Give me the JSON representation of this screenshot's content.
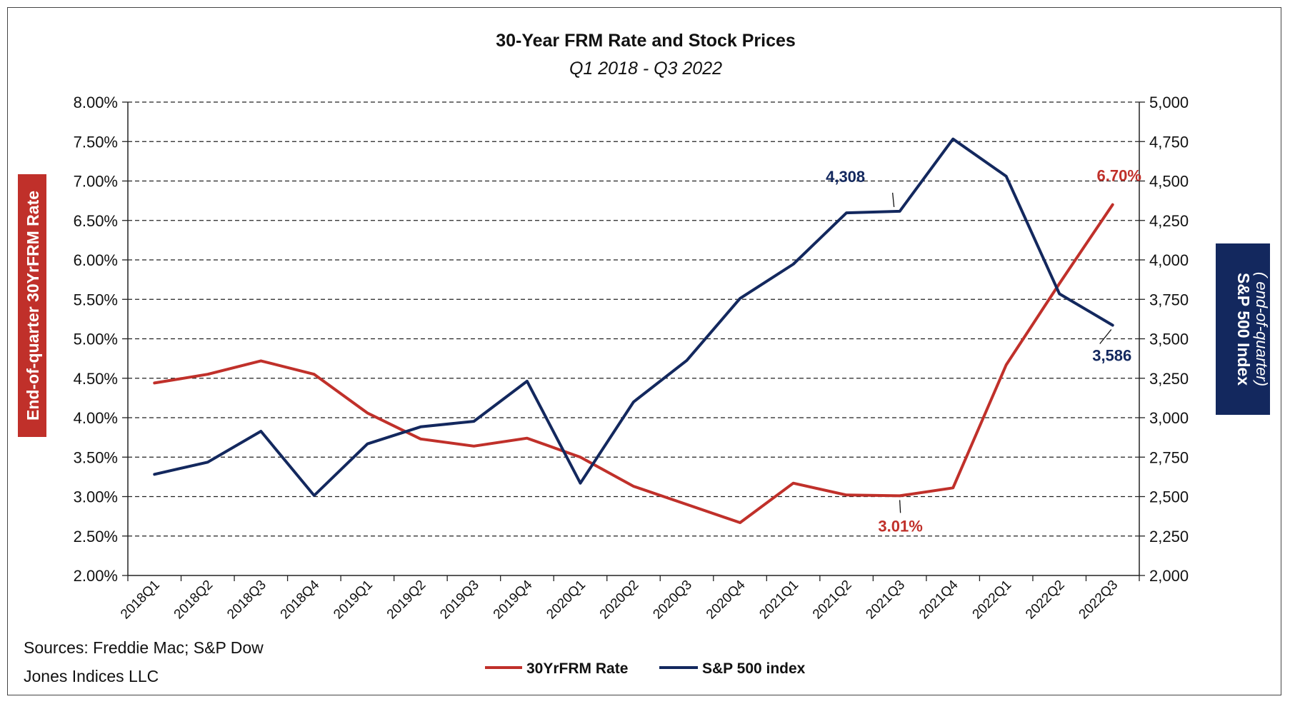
{
  "chart_data": {
    "type": "line",
    "title": "30-Year FRM Rate and Stock Prices",
    "subtitle": "Q1 2018 - Q3 2022",
    "categories": [
      "2018Q1",
      "2018Q2",
      "2018Q3",
      "2018Q4",
      "2019Q1",
      "2019Q2",
      "2019Q3",
      "2019Q4",
      "2020Q1",
      "2020Q2",
      "2020Q3",
      "2020Q4",
      "2021Q1",
      "2021Q2",
      "2021Q3",
      "2021Q4",
      "2022Q1",
      "2022Q2",
      "2022Q3"
    ],
    "y_left": {
      "label": "End-of-quarter 30YrFRM Rate",
      "ylim": [
        0.02,
        0.08
      ],
      "ticks": [
        "2.00%",
        "2.50%",
        "3.00%",
        "3.50%",
        "4.00%",
        "4.50%",
        "5.00%",
        "5.50%",
        "6.00%",
        "6.50%",
        "7.00%",
        "7.50%",
        "8.00%"
      ],
      "tick_values": [
        0.02,
        0.025,
        0.03,
        0.035,
        0.04,
        0.045,
        0.05,
        0.055,
        0.06,
        0.065,
        0.07,
        0.075,
        0.08
      ]
    },
    "y_right": {
      "label": "S&P 500 Index",
      "label_sub": "( end-of-quarter)",
      "ylim": [
        2000,
        5000
      ],
      "ticks": [
        "2,000",
        "2,250",
        "2,500",
        "2,750",
        "3,000",
        "3,250",
        "3,500",
        "3,750",
        "4,000",
        "4,250",
        "4,500",
        "4,750",
        "5,000"
      ],
      "tick_values": [
        2000,
        2250,
        2500,
        2750,
        3000,
        3250,
        3500,
        3750,
        4000,
        4250,
        4500,
        4750,
        5000
      ]
    },
    "grid": true,
    "series": [
      {
        "name": "30YrFRM Rate",
        "axis": "left",
        "color": "#c0302a",
        "values": [
          0.0444,
          0.0455,
          0.0472,
          0.0455,
          0.0406,
          0.0373,
          0.0364,
          0.0374,
          0.035,
          0.0313,
          0.029,
          0.0267,
          0.0317,
          0.0302,
          0.0301,
          0.0311,
          0.0467,
          0.057,
          0.067
        ]
      },
      {
        "name": "S&P 500 index",
        "axis": "right",
        "color": "#13285e",
        "values": [
          2641,
          2718,
          2914,
          2507,
          2834,
          2942,
          2977,
          3231,
          2585,
          3100,
          3363,
          3756,
          3973,
          4298,
          4308,
          4766,
          4530,
          3785,
          3586
        ]
      }
    ],
    "annotations": [
      {
        "text": "4,308",
        "series": 1,
        "index": 14,
        "color": "#13285e"
      },
      {
        "text": "3,586",
        "series": 1,
        "index": 18,
        "color": "#13285e"
      },
      {
        "text": "6.70%",
        "series": 0,
        "index": 18,
        "color": "#c0302a"
      },
      {
        "text": "3.01%",
        "series": 0,
        "index": 14,
        "color": "#c0302a"
      }
    ],
    "legend": {
      "placement": "bottom-center"
    },
    "source": "Sources: Freddie Mac; S&P Dow Jones Indices LLC",
    "source_lines": [
      "Sources: Freddie Mac; S&P Dow",
      "Jones Indices LLC"
    ]
  }
}
